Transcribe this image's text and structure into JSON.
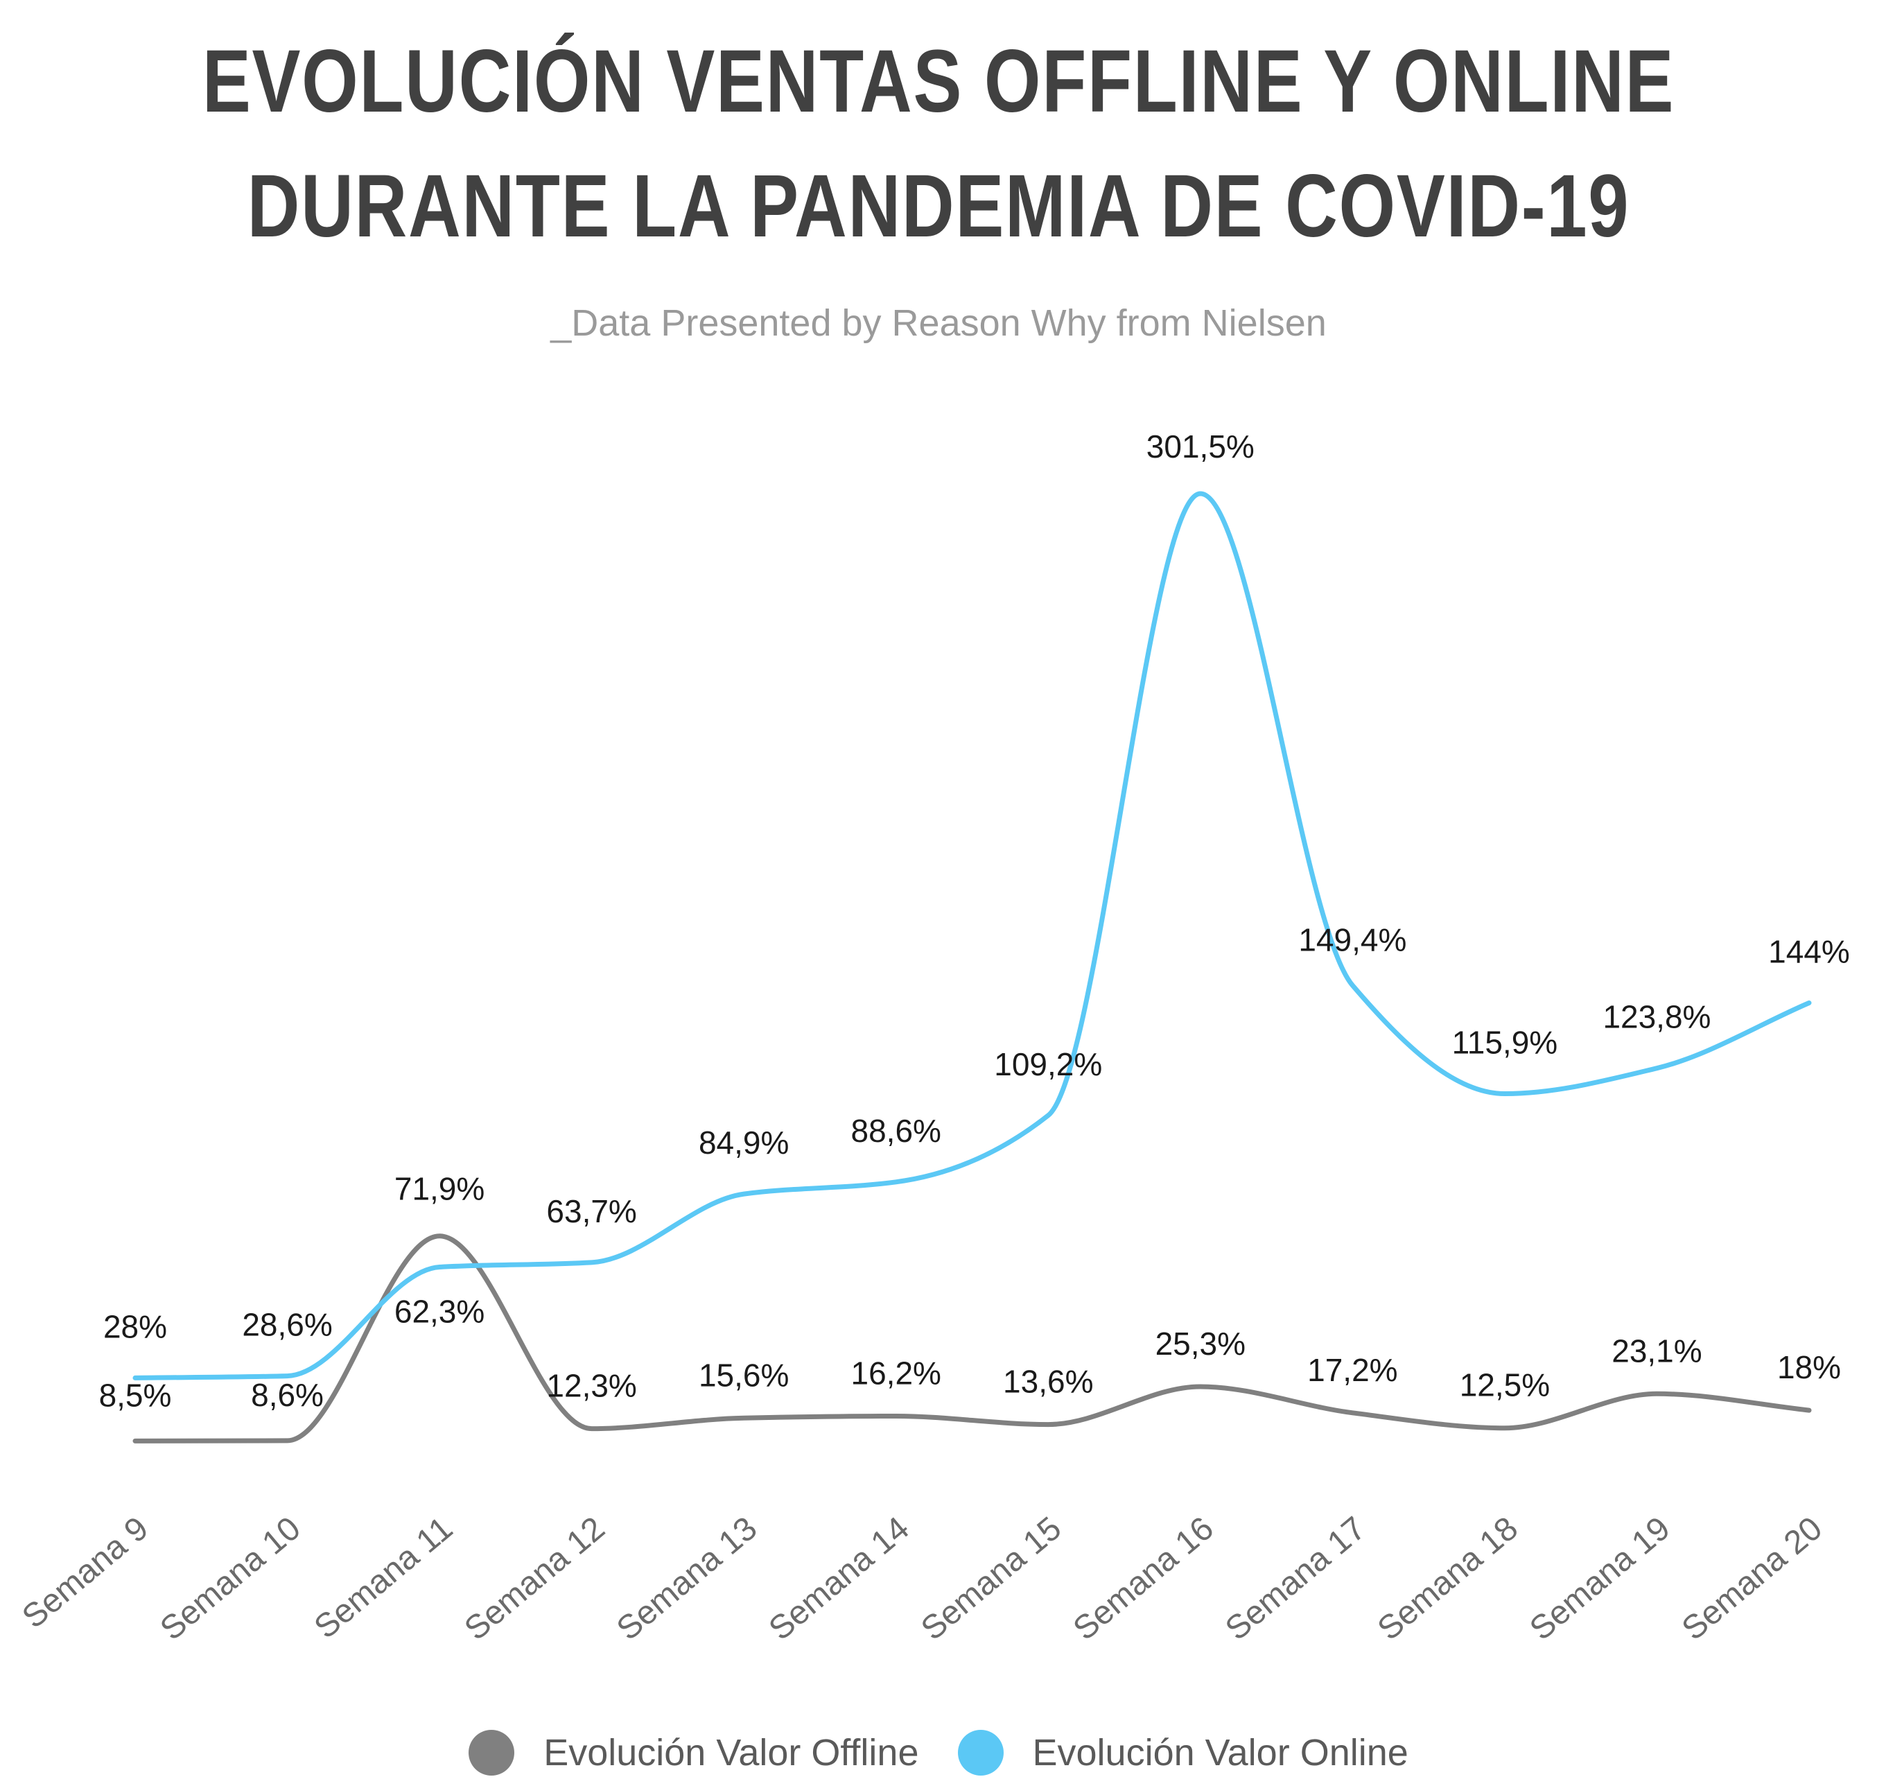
{
  "header": {
    "title_line1": "EVOLUCIÓN VENTAS OFFLINE Y ONLINE",
    "title_line2": "DURANTE LA PANDEMIA DE COVID-19",
    "subtitle": "_Data Presented by Reason Why from Nielsen"
  },
  "chart_data": {
    "type": "line",
    "title": "EVOLUCIÓN VENTAS OFFLINE Y ONLINE DURANTE LA PANDEMIA DE COVID-19",
    "subtitle": "_Data Presented by Reason Why from Nielsen",
    "categories": [
      "Semana 9",
      "Semana 10",
      "Semana 11",
      "Semana 12",
      "Semana 13",
      "Semana 14",
      "Semana 15",
      "Semana 16",
      "Semana 17",
      "Semana 18",
      "Semana 19",
      "Semana 20"
    ],
    "series": [
      {
        "name": "Evolución Valor Offline",
        "color": "#808080",
        "values": [
          8.5,
          8.6,
          71.9,
          12.3,
          15.6,
          16.2,
          13.6,
          25.3,
          17.2,
          12.5,
          23.1,
          18
        ],
        "labels": [
          "8,5%",
          "8,6%",
          "71,9%",
          "12,3%",
          "15,6%",
          "16,2%",
          "13,6%",
          "25,3%",
          "17,2%",
          "12,5%",
          "23,1%",
          "18%"
        ]
      },
      {
        "name": "Evolución Valor Online",
        "color": "#5bc8f5",
        "values": [
          28,
          28.6,
          62.3,
          63.7,
          84.9,
          88.6,
          109.2,
          301.5,
          149.4,
          115.9,
          123.8,
          144
        ],
        "labels": [
          "28%",
          "28,6%",
          "62,3%",
          "63,7%",
          "84,9%",
          "88,6%",
          "109,2%",
          "301,5%",
          "149,4%",
          "115,9%",
          "123,8%",
          "144%"
        ]
      }
    ],
    "ylim": [
      0,
      301.5
    ],
    "grid": false,
    "legend_position": "bottom"
  }
}
